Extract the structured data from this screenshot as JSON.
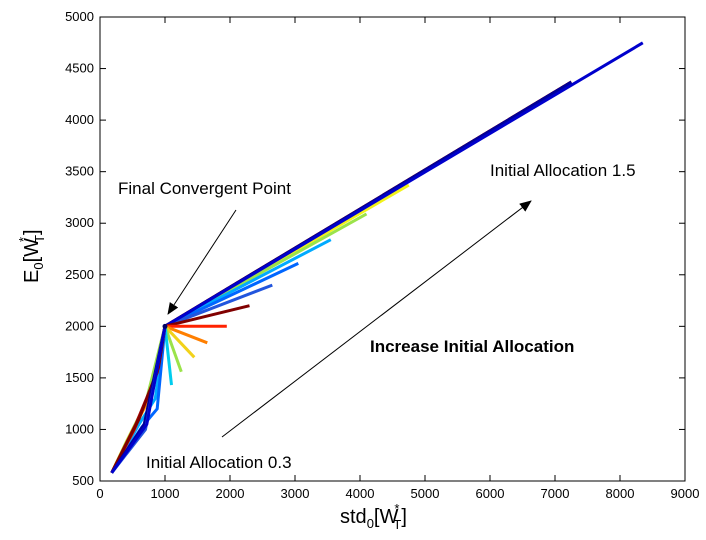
{
  "chart_data": {
    "type": "line",
    "xlabel": {
      "base": "std",
      "sub0": "0",
      "open": "[W",
      "sup": "*",
      "sub": "T",
      "close": "]"
    },
    "ylabel": {
      "base": "E",
      "sub0": "0",
      "open": "[W",
      "sup": "*",
      "sub": "T",
      "close": "]"
    },
    "xlim": [
      0,
      9000
    ],
    "ylim": [
      500,
      5000
    ],
    "xticks": [
      0,
      1000,
      2000,
      3000,
      4000,
      5000,
      6000,
      7000,
      8000,
      9000
    ],
    "yticks": [
      500,
      1000,
      1500,
      2000,
      2500,
      3000,
      3500,
      4000,
      4500,
      5000
    ],
    "grid": false,
    "colormap": "jet",
    "convergent_point": [
      1000,
      2000
    ],
    "start_point": [
      180,
      580
    ],
    "series": [
      {
        "color": "#f2f21a",
        "lower": [
          [
            180,
            580
          ],
          [
            420,
            900
          ],
          [
            750,
            1300
          ],
          [
            1000,
            2000
          ]
        ],
        "upper": [
          [
            1000,
            2000
          ],
          [
            4750,
            3370
          ]
        ]
      },
      {
        "color": "#9be34a",
        "lower": [
          [
            180,
            580
          ],
          [
            400,
            870
          ],
          [
            700,
            1250
          ],
          [
            1000,
            2000
          ]
        ],
        "upper": [
          [
            1000,
            2000
          ],
          [
            4100,
            3090
          ]
        ]
      },
      {
        "color": "#ff9900",
        "lower": [
          [
            180,
            580
          ],
          [
            470,
            950
          ],
          [
            800,
            1350
          ],
          [
            1000,
            2000
          ]
        ],
        "upper": [
          [
            1000,
            2000
          ],
          [
            7250,
            4370
          ]
        ]
      },
      {
        "color": "#00aaff",
        "lower": [
          [
            180,
            580
          ],
          [
            600,
            1050
          ],
          [
            850,
            1300
          ],
          [
            1000,
            2000
          ]
        ],
        "upper": [
          [
            1000,
            2000
          ],
          [
            3550,
            2840
          ]
        ]
      },
      {
        "color": "#0066ff",
        "lower": [
          [
            180,
            580
          ],
          [
            640,
            1020
          ],
          [
            880,
            1200
          ],
          [
            1000,
            2000
          ]
        ],
        "upper": [
          [
            1000,
            2000
          ],
          [
            3050,
            2610
          ]
        ]
      },
      {
        "color": "#ff2200",
        "lower": [
          [
            180,
            580
          ],
          [
            530,
            1000
          ],
          [
            850,
            1500
          ],
          [
            1000,
            2000
          ]
        ],
        "upper": [
          [
            1000,
            2000
          ],
          [
            7250,
            4370
          ]
        ]
      },
      {
        "color": "#aa0000",
        "lower": [
          [
            180,
            580
          ],
          [
            550,
            1050
          ],
          [
            880,
            1550
          ],
          [
            1000,
            2000
          ]
        ],
        "upper": [
          [
            1000,
            2000
          ],
          [
            7250,
            4370
          ]
        ]
      },
      {
        "color": "#800000",
        "lower": [
          [
            180,
            580
          ],
          [
            600,
            1100
          ],
          [
            900,
            1600
          ],
          [
            1000,
            2000
          ]
        ],
        "upper": [
          [
            1000,
            2000
          ],
          [
            7250,
            4370
          ]
        ]
      },
      {
        "color": "#000099",
        "lower": [
          [
            180,
            580
          ],
          [
            680,
            1050
          ],
          [
            1000,
            2000
          ]
        ],
        "upper": [
          [
            1000,
            2000
          ],
          [
            7250,
            4370
          ]
        ]
      },
      {
        "color": "#2255dd",
        "lower": [
          [
            180,
            580
          ],
          [
            700,
            1000
          ],
          [
            1000,
            2000
          ]
        ],
        "upper": [
          [
            1000,
            2000
          ],
          [
            2650,
            2400
          ]
        ]
      },
      {
        "color": "#0000cc",
        "lower": [
          [
            180,
            580
          ],
          [
            720,
            1050
          ],
          [
            1000,
            2000
          ]
        ],
        "upper": [
          [
            1000,
            2000
          ],
          [
            8350,
            4750
          ]
        ]
      }
    ],
    "fan": [
      {
        "color": "#800000",
        "points": [
          [
            1000,
            2000
          ],
          [
            2300,
            2200
          ]
        ]
      },
      {
        "color": "#ff2200",
        "points": [
          [
            1000,
            2000
          ],
          [
            1950,
            2000
          ]
        ]
      },
      {
        "color": "#ff7f00",
        "points": [
          [
            1000,
            2000
          ],
          [
            1650,
            1840
          ]
        ]
      },
      {
        "color": "#f2d21a",
        "points": [
          [
            1000,
            2000
          ],
          [
            1450,
            1700
          ]
        ]
      },
      {
        "color": "#9be34a",
        "points": [
          [
            1000,
            2000
          ],
          [
            1250,
            1560
          ]
        ]
      },
      {
        "color": "#00ccee",
        "points": [
          [
            1000,
            2000
          ],
          [
            1100,
            1430
          ]
        ]
      }
    ],
    "annotations": {
      "final_point": {
        "text": "Final Convergent Point",
        "pos": [
          380,
          3280
        ]
      },
      "alloc_high": {
        "text": "Initial Allocation 1.5",
        "pos": [
          5950,
          3480
        ]
      },
      "increase": {
        "text": "Increase Initial Allocation",
        "pos": [
          4020,
          1790
        ]
      },
      "alloc_low": {
        "text": "Initial Allocation 0.3",
        "pos": [
          700,
          660
        ]
      }
    }
  }
}
